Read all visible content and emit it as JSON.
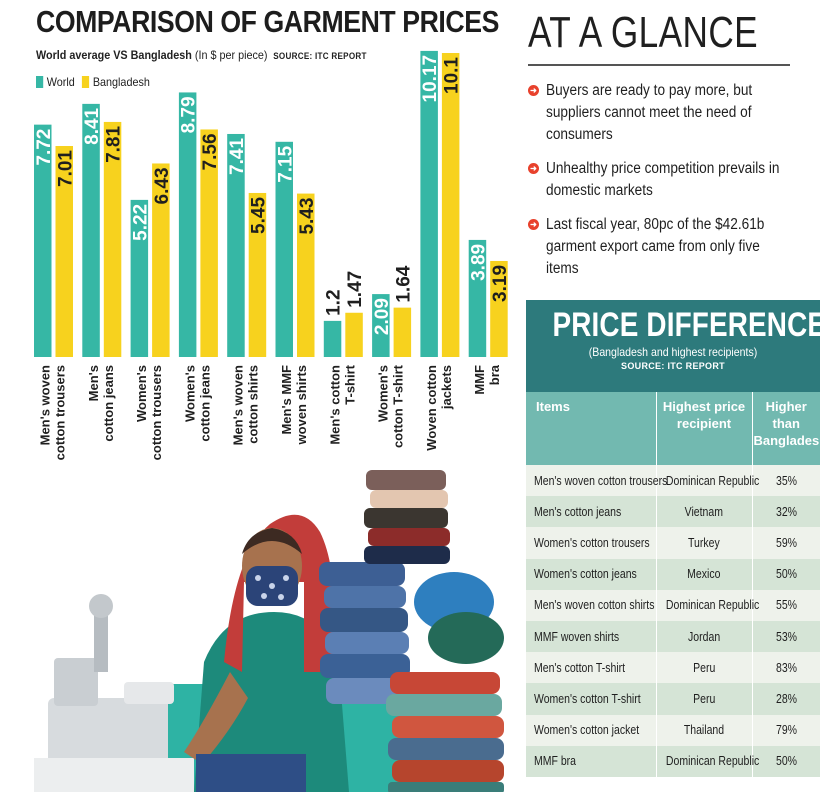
{
  "chart_title": "COMPARISON OF GARMENT PRICES",
  "chart_subtitle": "World average VS Bangladesh",
  "chart_unit": "(In $ per piece)",
  "chart_source": "SOURCE: ITC REPORT",
  "colors": {
    "world": "#36b7a5",
    "bangladesh": "#f7d21e",
    "accent_teal": "#2d7a7c",
    "table_head": "#72b9b0",
    "bullet": "#e8412c"
  },
  "chart_data": {
    "type": "bar",
    "categories": [
      "Men's woven cotton trousers",
      "Men's cotton jeans",
      "Women's cotton trousers",
      "Women's cotton jeans",
      "Men's woven cotton shirts",
      "Men's MMF woven shirts",
      "Men's cotton T-shirt",
      "Women's cotton T-shirt",
      "Woven cotton jackets",
      "MMF bra"
    ],
    "category_lines": [
      [
        "Men's woven",
        "cotton trousers"
      ],
      [
        "Men's",
        "cotton jeans"
      ],
      [
        "Women's",
        "cotton trousers"
      ],
      [
        "Women's",
        "cotton jeans"
      ],
      [
        "Men's woven",
        "cotton shirts"
      ],
      [
        "Men's MMF",
        "woven shirts"
      ],
      [
        "Men's cotton",
        "T-shirt"
      ],
      [
        "Women's",
        "cotton T-shirt"
      ],
      [
        "Woven cotton",
        "jackets"
      ],
      [
        "MMF",
        "bra"
      ]
    ],
    "series": [
      {
        "name": "World",
        "values": [
          7.72,
          8.41,
          5.22,
          8.79,
          7.41,
          7.15,
          1.2,
          2.09,
          10.17,
          3.89
        ]
      },
      {
        "name": "Bangladesh",
        "values": [
          7.01,
          7.81,
          6.43,
          7.56,
          5.45,
          5.43,
          1.47,
          1.64,
          10.1,
          3.19
        ]
      }
    ],
    "value_labels": {
      "World": [
        "7.72",
        "8.41",
        "5.22",
        "8.79",
        "7.41",
        "7.15",
        "1.2",
        "2.09",
        "10.17",
        "3.89"
      ],
      "Bangladesh": [
        "7.01",
        "7.81",
        "6.43",
        "7.56",
        "5.45",
        "5.43",
        "1.47",
        "1.64",
        "10.1",
        "3.19"
      ]
    },
    "title": "COMPARISON OF GARMENT PRICES",
    "ylabel": "",
    "ylim": [
      0,
      10.2
    ],
    "grid": false,
    "legend": "top-left"
  },
  "glance": {
    "title": "AT A GLANCE",
    "items": [
      {
        "text": "Buyers are ready to pay more, but suppliers cannot meet the need of consumers"
      },
      {
        "text": "Unhealthy price competition prevails in domestic markets"
      },
      {
        "text": "Last fiscal year, 80pc of the $42.61b garment export came from only five items"
      }
    ]
  },
  "price_difference": {
    "title": "PRICE DIFFERENCE",
    "subtitle": "(Bangladesh and highest recipients)",
    "source": "SOURCE: ITC REPORT",
    "columns": [
      "Items",
      "Highest price recipient",
      "Higher than Bangladesh"
    ],
    "rows": [
      {
        "item": "Men's woven cotton trousers",
        "recipient": "Dominican Republic",
        "higher": "35%"
      },
      {
        "item": "Men's cotton jeans",
        "recipient": "Vietnam",
        "higher": "32%"
      },
      {
        "item": "Women's cotton trousers",
        "recipient": "Turkey",
        "higher": "59%"
      },
      {
        "item": "Women's cotton jeans",
        "recipient": "Mexico",
        "higher": "50%"
      },
      {
        "item": "Men's woven cotton shirts",
        "recipient": "Dominican Republic",
        "higher": "55%"
      },
      {
        "item": "MMF woven shirts",
        "recipient": "Jordan",
        "higher": "53%"
      },
      {
        "item": "Men's cotton T-shirt",
        "recipient": "Peru",
        "higher": "83%"
      },
      {
        "item": "Women's cotton T-shirt",
        "recipient": "Peru",
        "higher": "28%"
      },
      {
        "item": "Women's cotton jacket",
        "recipient": "Thailand",
        "higher": "79%"
      },
      {
        "item": "MMF bra",
        "recipient": "Dominican Republic",
        "higher": "50%"
      }
    ]
  }
}
